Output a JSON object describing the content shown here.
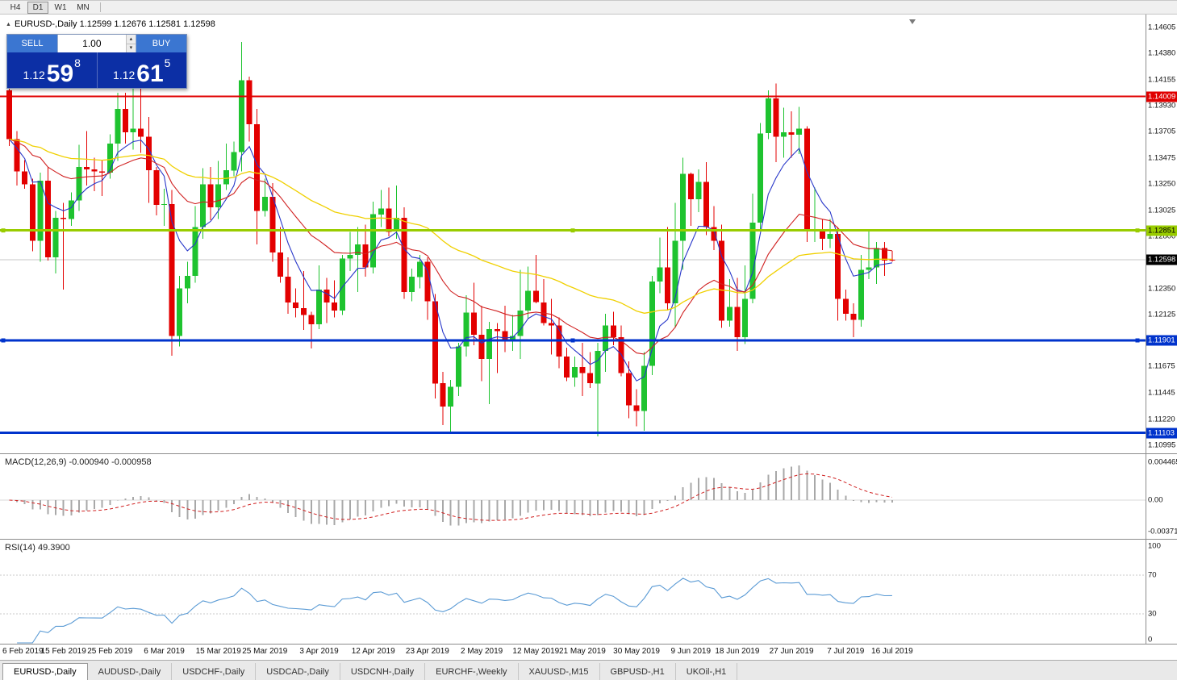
{
  "toolbar": {
    "timeframes": [
      {
        "label": "H4",
        "active": false
      },
      {
        "label": "D1",
        "active": true
      },
      {
        "label": "W1",
        "active": false
      },
      {
        "label": "MN",
        "active": false
      }
    ]
  },
  "chart_header": {
    "text": "EURUSD-,Daily  1.12599 1.12676 1.12581 1.12598"
  },
  "trade_panel": {
    "sell_label": "SELL",
    "buy_label": "BUY",
    "volume": "1.00",
    "sell_price": {
      "prefix": "1.12",
      "big": "59",
      "sup": "8"
    },
    "buy_price": {
      "prefix": "1.12",
      "big": "61",
      "sup": "5"
    }
  },
  "price_axis": {
    "labels": [
      "1.14605",
      "1.14380",
      "1.14155",
      "1.13930",
      "1.13705",
      "1.13475",
      "1.13250",
      "1.13025",
      "1.12800",
      "1.12350",
      "1.12125",
      "1.11675",
      "1.11445",
      "1.11220",
      "1.10995"
    ],
    "badges": [
      {
        "label": "1.14009",
        "bg": "line_resistance",
        "fg": "#ffffff"
      },
      {
        "label": "1.12851",
        "bg": "line_pivot_green",
        "fg": "#000000"
      },
      {
        "label": "1.12598",
        "bg": "price_current_bg",
        "fg": "#ffffff"
      },
      {
        "label": "1.11901",
        "bg": "line_support_blue",
        "fg": "#ffffff"
      },
      {
        "label": "1.11103",
        "bg": "line_support_blue",
        "fg": "#ffffff"
      }
    ]
  },
  "macd": {
    "label": "MACD(12,26,9) -0.000940 -0.000958",
    "axis": [
      "0.004465",
      "0.00",
      "-0.00371"
    ]
  },
  "rsi": {
    "label": "RSI(14) 49.3900",
    "axis": [
      "100",
      "70",
      "30",
      "0"
    ],
    "levels": [
      70,
      30
    ]
  },
  "date_axis": [
    {
      "label": "6 Feb 2019",
      "idx": 0
    },
    {
      "label": "15 Feb 2019",
      "idx": 7
    },
    {
      "label": "25 Feb 2019",
      "idx": 13
    },
    {
      "label": "6 Mar 2019",
      "idx": 20
    },
    {
      "label": "15 Mar 2019",
      "idx": 27
    },
    {
      "label": "25 Mar 2019",
      "idx": 33
    },
    {
      "label": "3 Apr 2019",
      "idx": 40
    },
    {
      "label": "12 Apr 2019",
      "idx": 47
    },
    {
      "label": "23 Apr 2019",
      "idx": 54
    },
    {
      "label": "2 May 2019",
      "idx": 61
    },
    {
      "label": "12 May 2019",
      "idx": 68
    },
    {
      "label": "21 May 2019",
      "idx": 74
    },
    {
      "label": "30 May 2019",
      "idx": 81
    },
    {
      "label": "9 Jun 2019",
      "idx": 88
    },
    {
      "label": "18 Jun 2019",
      "idx": 94
    },
    {
      "label": "27 Jun 2019",
      "idx": 101
    },
    {
      "label": "7 Jul 2019",
      "idx": 108
    },
    {
      "label": "16 Jul 2019",
      "idx": 114
    }
  ],
  "tabs": [
    {
      "label": "EURUSD-,Daily",
      "active": true
    },
    {
      "label": "AUDUSD-,Daily",
      "active": false
    },
    {
      "label": "USDCHF-,Daily",
      "active": false
    },
    {
      "label": "USDCAD-,Daily",
      "active": false
    },
    {
      "label": "USDCNH-,Daily",
      "active": false
    },
    {
      "label": "EURCHF-,Weekly",
      "active": false
    },
    {
      "label": "XAUUSD-,M15",
      "active": false
    },
    {
      "label": "GBPUSD-,H1",
      "active": false
    },
    {
      "label": "UKOil-,H1",
      "active": false
    }
  ],
  "colors": {
    "candle_up": "#1ec32f",
    "candle_down": "#e30000",
    "ma_fast": "#2736c9",
    "ma_mid": "#d02020",
    "ma_slow": "#f0d000",
    "line_resistance": "#e00000",
    "line_pivot_green": "#99cc00",
    "line_support_blue": "#0033cc",
    "price_current_bg": "#000000",
    "macd_hist": "#a8a8a8",
    "macd_signal": "#d02020",
    "rsi_line": "#5b9bd5",
    "trade_button": "#3b76d1",
    "trade_price_bg": "#0c2fa5"
  },
  "chart_data": {
    "type": "candlestick",
    "symbol": "EURUSD-",
    "timeframe": "Daily",
    "current_price": 1.12598,
    "ohlc_display": {
      "open": 1.12599,
      "high": 1.12676,
      "low": 1.12581,
      "close": 1.12598
    },
    "hlines": [
      {
        "name": "resistance",
        "price": 1.14009,
        "color": "line_resistance",
        "width": 2,
        "selected": false
      },
      {
        "name": "pivot-green",
        "price": 1.12851,
        "color": "line_pivot_green",
        "width": 3,
        "selected": true
      },
      {
        "name": "support-mid",
        "price": 1.11901,
        "color": "line_support_blue",
        "width": 3,
        "selected": true
      },
      {
        "name": "support-low",
        "price": 1.11103,
        "color": "line_support_blue",
        "width": 3,
        "selected": false
      }
    ],
    "moving_averages": [
      {
        "name": "fast",
        "period": 6,
        "color": "ma_fast"
      },
      {
        "name": "medium",
        "period": 20,
        "color": "ma_mid"
      },
      {
        "name": "slow",
        "period": 50,
        "color": "ma_slow"
      }
    ],
    "indicators": {
      "macd": {
        "fast": 12,
        "slow": 26,
        "signal": 9,
        "value": -0.00094,
        "signal_value": -0.000958
      },
      "rsi": {
        "period": 14,
        "value": 49.39
      }
    },
    "candles": [
      [
        1.1406,
        1.141,
        1.1358,
        1.1364
      ],
      [
        1.1364,
        1.1371,
        1.1324,
        1.1336
      ],
      [
        1.1336,
        1.1346,
        1.1321,
        1.1325
      ],
      [
        1.1325,
        1.133,
        1.1267,
        1.1276
      ],
      [
        1.1276,
        1.1335,
        1.1258,
        1.1328
      ],
      [
        1.1328,
        1.134,
        1.1259,
        1.1262
      ],
      [
        1.1262,
        1.1302,
        1.1248,
        1.1296
      ],
      [
        1.1296,
        1.1309,
        1.1234,
        1.1295
      ],
      [
        1.1295,
        1.1318,
        1.1289,
        1.1311
      ],
      [
        1.1311,
        1.1359,
        1.1302,
        1.134
      ],
      [
        1.134,
        1.1371,
        1.1324,
        1.1338
      ],
      [
        1.1338,
        1.1348,
        1.1319,
        1.1336
      ],
      [
        1.1336,
        1.1346,
        1.1315,
        1.1335
      ],
      [
        1.1335,
        1.1368,
        1.133,
        1.136
      ],
      [
        1.136,
        1.1404,
        1.1345,
        1.139
      ],
      [
        1.139,
        1.1404,
        1.136,
        1.137
      ],
      [
        1.137,
        1.142,
        1.1355,
        1.1373
      ],
      [
        1.1373,
        1.1409,
        1.1352,
        1.1366
      ],
      [
        1.1366,
        1.1383,
        1.1309,
        1.1337
      ],
      [
        1.1337,
        1.134,
        1.1298,
        1.1307
      ],
      [
        1.1307,
        1.1321,
        1.1289,
        1.1308
      ],
      [
        1.1308,
        1.132,
        1.1177,
        1.1194
      ],
      [
        1.1194,
        1.1246,
        1.1185,
        1.1235
      ],
      [
        1.1235,
        1.1258,
        1.1222,
        1.1246
      ],
      [
        1.1246,
        1.1306,
        1.124,
        1.1288
      ],
      [
        1.1288,
        1.1339,
        1.1278,
        1.1325
      ],
      [
        1.1325,
        1.134,
        1.1294,
        1.1305
      ],
      [
        1.1305,
        1.1345,
        1.1295,
        1.1325
      ],
      [
        1.1325,
        1.136,
        1.132,
        1.1337
      ],
      [
        1.1337,
        1.1362,
        1.1332,
        1.1353
      ],
      [
        1.1353,
        1.1448,
        1.1336,
        1.1415
      ],
      [
        1.1415,
        1.1418,
        1.1362,
        1.1377
      ],
      [
        1.1377,
        1.139,
        1.1273,
        1.1302
      ],
      [
        1.1302,
        1.133,
        1.1297,
        1.1314
      ],
      [
        1.1314,
        1.1326,
        1.1258,
        1.1266
      ],
      [
        1.1266,
        1.1288,
        1.124,
        1.1245
      ],
      [
        1.1245,
        1.1262,
        1.1213,
        1.1223
      ],
      [
        1.1223,
        1.1235,
        1.121,
        1.1218
      ],
      [
        1.1218,
        1.125,
        1.1199,
        1.1212
      ],
      [
        1.1212,
        1.1215,
        1.1183,
        1.1204
      ],
      [
        1.1204,
        1.1255,
        1.12,
        1.1234
      ],
      [
        1.1234,
        1.1244,
        1.1205,
        1.1223
      ],
      [
        1.1223,
        1.1242,
        1.121,
        1.1216
      ],
      [
        1.1216,
        1.1264,
        1.1212,
        1.1261
      ],
      [
        1.1261,
        1.1284,
        1.125,
        1.1264
      ],
      [
        1.1264,
        1.1288,
        1.1232,
        1.1273
      ],
      [
        1.1273,
        1.129,
        1.1245,
        1.1253
      ],
      [
        1.1253,
        1.131,
        1.1248,
        1.1299
      ],
      [
        1.1299,
        1.132,
        1.1288,
        1.1304
      ],
      [
        1.1304,
        1.1322,
        1.128,
        1.1284
      ],
      [
        1.1284,
        1.1324,
        1.1278,
        1.1296
      ],
      [
        1.1296,
        1.1305,
        1.1226,
        1.1232
      ],
      [
        1.1232,
        1.1252,
        1.1224,
        1.1245
      ],
      [
        1.1245,
        1.1264,
        1.1235,
        1.1258
      ],
      [
        1.1258,
        1.1262,
        1.1208,
        1.1224
      ],
      [
        1.1224,
        1.123,
        1.114,
        1.1153
      ],
      [
        1.1153,
        1.1163,
        1.1117,
        1.1133
      ],
      [
        1.1133,
        1.1156,
        1.1111,
        1.115
      ],
      [
        1.115,
        1.1188,
        1.1142,
        1.1185
      ],
      [
        1.1185,
        1.1229,
        1.1176,
        1.1214
      ],
      [
        1.1214,
        1.124,
        1.1186,
        1.1195
      ],
      [
        1.1195,
        1.122,
        1.1155,
        1.1174
      ],
      [
        1.1174,
        1.1206,
        1.1135,
        1.12
      ],
      [
        1.12,
        1.1205,
        1.1162,
        1.1198
      ],
      [
        1.1198,
        1.122,
        1.118,
        1.119
      ],
      [
        1.119,
        1.1212,
        1.1181,
        1.1194
      ],
      [
        1.1194,
        1.1251,
        1.1174,
        1.1216
      ],
      [
        1.1216,
        1.1254,
        1.1209,
        1.1233
      ],
      [
        1.1233,
        1.1264,
        1.1222,
        1.1223
      ],
      [
        1.1223,
        1.1243,
        1.1203,
        1.1205
      ],
      [
        1.1205,
        1.1226,
        1.1178,
        1.1203
      ],
      [
        1.1203,
        1.121,
        1.1166,
        1.1176
      ],
      [
        1.1176,
        1.1184,
        1.1155,
        1.1158
      ],
      [
        1.1158,
        1.1176,
        1.115,
        1.1167
      ],
      [
        1.1167,
        1.1188,
        1.1142,
        1.1162
      ],
      [
        1.1162,
        1.118,
        1.1149,
        1.1153
      ],
      [
        1.1153,
        1.1188,
        1.1107,
        1.1181
      ],
      [
        1.1181,
        1.1213,
        1.1163,
        1.1203
      ],
      [
        1.1203,
        1.1215,
        1.1186,
        1.1193
      ],
      [
        1.1193,
        1.1203,
        1.1159,
        1.1162
      ],
      [
        1.1162,
        1.1172,
        1.1123,
        1.1134
      ],
      [
        1.1134,
        1.1148,
        1.1116,
        1.1129
      ],
      [
        1.1129,
        1.118,
        1.1112,
        1.1168
      ],
      [
        1.1168,
        1.1246,
        1.116,
        1.1241
      ],
      [
        1.1241,
        1.1279,
        1.1231,
        1.1253
      ],
      [
        1.1253,
        1.1288,
        1.1216,
        1.1222
      ],
      [
        1.1222,
        1.1309,
        1.1201,
        1.1276
      ],
      [
        1.1276,
        1.1348,
        1.1251,
        1.1334
      ],
      [
        1.1334,
        1.1335,
        1.1289,
        1.1312
      ],
      [
        1.1312,
        1.1338,
        1.1301,
        1.1327
      ],
      [
        1.1327,
        1.1344,
        1.1281,
        1.1288
      ],
      [
        1.1288,
        1.1306,
        1.1268,
        1.1276
      ],
      [
        1.1276,
        1.129,
        1.1201,
        1.1207
      ],
      [
        1.1207,
        1.1243,
        1.1202,
        1.1219
      ],
      [
        1.1219,
        1.1244,
        1.1181,
        1.1193
      ],
      [
        1.1193,
        1.1255,
        1.1187,
        1.1226
      ],
      [
        1.1226,
        1.1317,
        1.1222,
        1.1292
      ],
      [
        1.1292,
        1.1378,
        1.1285,
        1.1369
      ],
      [
        1.1369,
        1.1406,
        1.1364,
        1.1399
      ],
      [
        1.1399,
        1.1412,
        1.1344,
        1.1366
      ],
      [
        1.1366,
        1.1391,
        1.1348,
        1.137
      ],
      [
        1.137,
        1.1388,
        1.1348,
        1.1368
      ],
      [
        1.1368,
        1.1392,
        1.1351,
        1.1373
      ],
      [
        1.1373,
        1.1375,
        1.1275,
        1.1285
      ],
      [
        1.1285,
        1.1322,
        1.1275,
        1.1285
      ],
      [
        1.1285,
        1.1295,
        1.1268,
        1.1278
      ],
      [
        1.1278,
        1.1295,
        1.127,
        1.1282
      ],
      [
        1.1282,
        1.1288,
        1.1207,
        1.1226
      ],
      [
        1.1226,
        1.1234,
        1.1207,
        1.1213
      ],
      [
        1.1213,
        1.1222,
        1.1193,
        1.1208
      ],
      [
        1.1208,
        1.1264,
        1.1202,
        1.1251
      ],
      [
        1.1251,
        1.1286,
        1.1243,
        1.1253
      ],
      [
        1.1253,
        1.1275,
        1.1239,
        1.127
      ],
      [
        1.127,
        1.1275,
        1.1246,
        1.1259
      ],
      [
        1.12599,
        1.12676,
        1.12581,
        1.12598
      ]
    ]
  }
}
